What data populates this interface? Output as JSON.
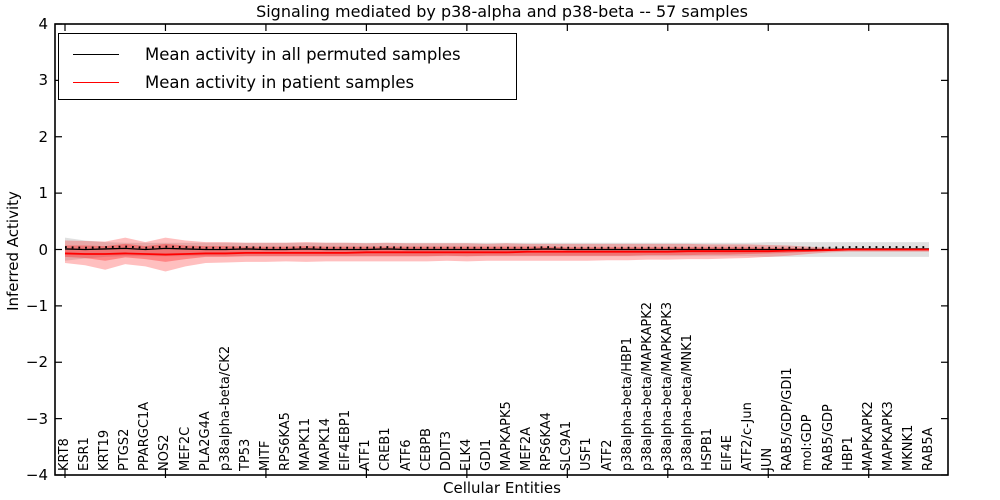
{
  "figure": {
    "title": "Signaling mediated by p38-alpha and p38-beta -- 57 samples",
    "xlabel": "Cellular Entities",
    "ylabel": "Inferred Activity"
  },
  "legend": {
    "entries": [
      {
        "label": "Mean activity in all permuted samples",
        "color": "#000000"
      },
      {
        "label": "Mean activity in patient samples",
        "color": "#ff0000"
      }
    ]
  },
  "chart_data": {
    "type": "line",
    "title": "Signaling mediated by p38-alpha and p38-beta -- 57 samples",
    "xlabel": "Cellular Entities",
    "ylabel": "Inferred Activity",
    "ylim": [
      -4,
      4
    ],
    "y_tick_labels": [
      "4",
      "3",
      "2",
      "1",
      "0",
      "−1",
      "−2",
      "−3",
      "−4"
    ],
    "y_tick_values": [
      4,
      3,
      2,
      1,
      0,
      -1,
      -2,
      -3,
      -4
    ],
    "grid": false,
    "legend_position": "upper left",
    "frame_color": "#000000",
    "categories": [
      "KRT8",
      "ESR1",
      "KRT19",
      "PTGS2",
      "PPARGC1A",
      "NOS2",
      "MEF2C",
      "PLA2G4A",
      "p38alpha-beta/CK2",
      "TP53",
      "MITF",
      "RPS6KA5",
      "MAPK11",
      "MAPK14",
      "EIF4EBP1",
      "ATF1",
      "CREB1",
      "ATF6",
      "CEBPB",
      "DDIT3",
      "ELK4",
      "GDI1",
      "MAPKAPK5",
      "MEF2A",
      "RPS6KA4",
      "SLC9A1",
      "USF1",
      "ATF2",
      "p38alpha-beta/HBP1",
      "p38alpha-beta/MAPKAPK2",
      "p38alpha-beta/MAPKAPK3",
      "p38alpha-beta/MNK1",
      "HSPB1",
      "EIF4E",
      "ATF2/c-Jun",
      "JUN",
      "RAB5/GDP/GDI1",
      "mol:GDP",
      "RAB5/GDP",
      "HBP1",
      "MAPKAPK2",
      "MAPKAPK3",
      "MKNK1",
      "RAB5A"
    ],
    "series": [
      {
        "name": "Mean activity in all permuted samples",
        "color": "#000000",
        "style": "solid-with-dot-markers",
        "values": [
          0.01,
          0.0,
          0.01,
          0.02,
          0.0,
          0.02,
          0.01,
          0.0,
          0.0,
          0.01,
          0.0,
          0.0,
          0.01,
          0.0,
          0.0,
          0.0,
          0.01,
          0.0,
          0.0,
          0.0,
          0.0,
          0.0,
          0.0,
          0.0,
          0.01,
          0.0,
          0.0,
          0.0,
          0.0,
          0.0,
          0.0,
          0.0,
          0.0,
          0.0,
          0.0,
          0.0,
          0.0,
          0.0,
          0.0,
          0.01,
          0.01,
          0.01,
          0.01,
          0.01
        ]
      },
      {
        "name": "Mean activity in patient samples",
        "color": "#ff0000",
        "style": "solid",
        "values": [
          -0.07,
          -0.08,
          -0.08,
          -0.07,
          -0.08,
          -0.09,
          -0.08,
          -0.07,
          -0.07,
          -0.06,
          -0.06,
          -0.06,
          -0.06,
          -0.06,
          -0.06,
          -0.05,
          -0.05,
          -0.05,
          -0.05,
          -0.05,
          -0.05,
          -0.05,
          -0.05,
          -0.04,
          -0.04,
          -0.04,
          -0.04,
          -0.04,
          -0.04,
          -0.04,
          -0.04,
          -0.03,
          -0.03,
          -0.03,
          -0.03,
          -0.03,
          -0.02,
          -0.02,
          -0.01,
          0.0,
          0.0,
          0.0,
          0.0,
          0.0
        ]
      }
    ],
    "bands": [
      {
        "name": "permuted-samples-range",
        "color": "rgba(0,0,0,0.12)",
        "upper": [
          0.21,
          0.16,
          0.13,
          0.12,
          0.12,
          0.12,
          0.12,
          0.12,
          0.12,
          0.12,
          0.12,
          0.12,
          0.12,
          0.12,
          0.12,
          0.12,
          0.12,
          0.12,
          0.12,
          0.12,
          0.12,
          0.12,
          0.12,
          0.12,
          0.12,
          0.12,
          0.12,
          0.12,
          0.12,
          0.12,
          0.12,
          0.12,
          0.12,
          0.12,
          0.12,
          0.13,
          0.13,
          0.13,
          0.13,
          0.13,
          0.13,
          0.13,
          0.13,
          0.13
        ],
        "lower": [
          -0.2,
          -0.16,
          -0.13,
          -0.12,
          -0.12,
          -0.12,
          -0.12,
          -0.12,
          -0.12,
          -0.12,
          -0.12,
          -0.12,
          -0.12,
          -0.12,
          -0.12,
          -0.12,
          -0.12,
          -0.12,
          -0.12,
          -0.12,
          -0.12,
          -0.12,
          -0.12,
          -0.12,
          -0.12,
          -0.12,
          -0.12,
          -0.12,
          -0.12,
          -0.12,
          -0.12,
          -0.12,
          -0.12,
          -0.12,
          -0.12,
          -0.13,
          -0.13,
          -0.13,
          -0.13,
          -0.13,
          -0.13,
          -0.13,
          -0.13,
          -0.13
        ]
      },
      {
        "name": "patient-samples-outer-range",
        "color": "rgba(255,0,0,0.25)",
        "upper": [
          0.16,
          0.15,
          0.14,
          0.21,
          0.13,
          0.21,
          0.16,
          0.13,
          0.13,
          0.12,
          0.12,
          0.12,
          0.13,
          0.12,
          0.12,
          0.11,
          0.12,
          0.11,
          0.11,
          0.11,
          0.11,
          0.1,
          0.11,
          0.1,
          0.1,
          0.1,
          0.1,
          0.1,
          0.1,
          0.1,
          0.1,
          0.1,
          0.09,
          0.09,
          0.09,
          0.08,
          0.07,
          0.05,
          0.03,
          0.02,
          0.02,
          0.02,
          0.02,
          0.02
        ],
        "lower": [
          -0.24,
          -0.28,
          -0.36,
          -0.26,
          -0.3,
          -0.39,
          -0.3,
          -0.24,
          -0.23,
          -0.22,
          -0.22,
          -0.21,
          -0.22,
          -0.21,
          -0.21,
          -0.21,
          -0.21,
          -0.21,
          -0.21,
          -0.2,
          -0.21,
          -0.2,
          -0.2,
          -0.2,
          -0.2,
          -0.2,
          -0.2,
          -0.19,
          -0.19,
          -0.18,
          -0.18,
          -0.17,
          -0.17,
          -0.16,
          -0.15,
          -0.13,
          -0.11,
          -0.08,
          -0.05,
          -0.04,
          -0.04,
          -0.04,
          -0.04,
          -0.04
        ]
      },
      {
        "name": "patient-samples-inner-range",
        "color": "rgba(255,0,0,0.30)",
        "upper": [
          0.07,
          0.07,
          0.06,
          0.1,
          0.06,
          0.1,
          0.07,
          0.06,
          0.06,
          0.05,
          0.05,
          0.05,
          0.06,
          0.05,
          0.05,
          0.05,
          0.05,
          0.05,
          0.05,
          0.05,
          0.05,
          0.05,
          0.05,
          0.05,
          0.05,
          0.04,
          0.04,
          0.04,
          0.04,
          0.04,
          0.04,
          0.04,
          0.04,
          0.04,
          0.04,
          0.03,
          0.03,
          0.02,
          0.01,
          0.01,
          0.01,
          0.01,
          0.01,
          0.01
        ],
        "lower": [
          -0.13,
          -0.15,
          -0.2,
          -0.14,
          -0.17,
          -0.22,
          -0.17,
          -0.13,
          -0.13,
          -0.12,
          -0.12,
          -0.12,
          -0.12,
          -0.12,
          -0.12,
          -0.12,
          -0.12,
          -0.12,
          -0.12,
          -0.11,
          -0.12,
          -0.11,
          -0.11,
          -0.11,
          -0.11,
          -0.11,
          -0.11,
          -0.11,
          -0.11,
          -0.1,
          -0.1,
          -0.1,
          -0.09,
          -0.09,
          -0.08,
          -0.07,
          -0.06,
          -0.04,
          -0.03,
          -0.02,
          -0.02,
          -0.02,
          -0.02,
          -0.02
        ]
      }
    ]
  }
}
